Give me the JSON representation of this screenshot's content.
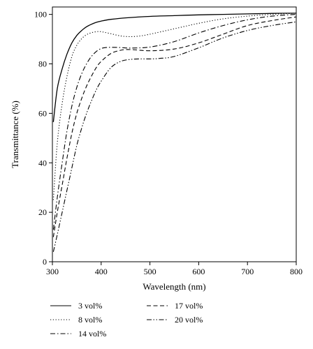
{
  "chart_data": {
    "type": "line",
    "xlabel": "Wavelength (nm)",
    "ylabel": "Transmittance (%)",
    "xlim": [
      300,
      800
    ],
    "ylim": [
      0,
      103
    ],
    "xticks": [
      300,
      400,
      500,
      600,
      700,
      800
    ],
    "yticks": [
      0,
      20,
      40,
      60,
      80,
      100
    ],
    "grid": false,
    "legend_position": "bottom",
    "series": [
      {
        "name": "3 vol%",
        "dash": "solid",
        "x": [
          302,
          310,
          320,
          330,
          340,
          350,
          360,
          370,
          380,
          390,
          400,
          420,
          450,
          500,
          550,
          600,
          650,
          700,
          750,
          800
        ],
        "y": [
          56.5,
          70,
          78,
          84,
          88.5,
          91.5,
          93.5,
          95,
          96,
          96.8,
          97.3,
          98,
          98.6,
          99.2,
          99.5,
          99.8,
          100,
          100.2,
          100.4,
          100.5
        ]
      },
      {
        "name": "8 vol%",
        "dash": "dotted",
        "x": [
          302,
          310,
          320,
          330,
          340,
          350,
          360,
          370,
          380,
          390,
          400,
          420,
          440,
          460,
          480,
          500,
          550,
          600,
          650,
          700,
          750,
          800
        ],
        "y": [
          25,
          48,
          64,
          75,
          83,
          87.5,
          90.2,
          91.8,
          92.6,
          93,
          93,
          92.2,
          91.3,
          91,
          91.3,
          92,
          94.2,
          96.4,
          98.2,
          99.3,
          100,
          100.5
        ]
      },
      {
        "name": "14 vol%",
        "dash": "dashdot",
        "x": [
          302,
          310,
          320,
          330,
          340,
          350,
          360,
          370,
          380,
          390,
          400,
          410,
          420,
          440,
          460,
          500,
          550,
          600,
          650,
          700,
          750,
          800
        ],
        "y": [
          13,
          26,
          40,
          53,
          63,
          70.5,
          76,
          80,
          83,
          85,
          86.2,
          86.6,
          86.7,
          86.6,
          86.4,
          86.8,
          89,
          92.5,
          95.5,
          97.8,
          99.3,
          100
        ]
      },
      {
        "name": "17 vol%",
        "dash": "dashed",
        "x": [
          302,
          310,
          320,
          330,
          340,
          350,
          360,
          370,
          380,
          390,
          400,
          420,
          440,
          460,
          500,
          550,
          600,
          650,
          700,
          750,
          800
        ],
        "y": [
          10,
          20,
          31,
          42,
          52,
          60,
          66,
          71,
          75,
          78.5,
          81,
          84.2,
          85.5,
          85.8,
          85.3,
          86,
          88.5,
          92,
          95.5,
          97.5,
          99
        ]
      },
      {
        "name": "20 vol%",
        "dash": "dashdotdot",
        "x": [
          302,
          310,
          320,
          330,
          340,
          350,
          360,
          370,
          380,
          390,
          400,
          420,
          440,
          460,
          480,
          500,
          520,
          550,
          600,
          650,
          700,
          750,
          800
        ],
        "y": [
          4,
          11,
          20,
          29,
          38,
          47,
          54,
          60,
          65,
          69.5,
          73,
          78.5,
          81,
          81.8,
          82,
          82,
          82.2,
          83,
          86.5,
          90.5,
          93.5,
          95.5,
          97
        ]
      }
    ]
  }
}
